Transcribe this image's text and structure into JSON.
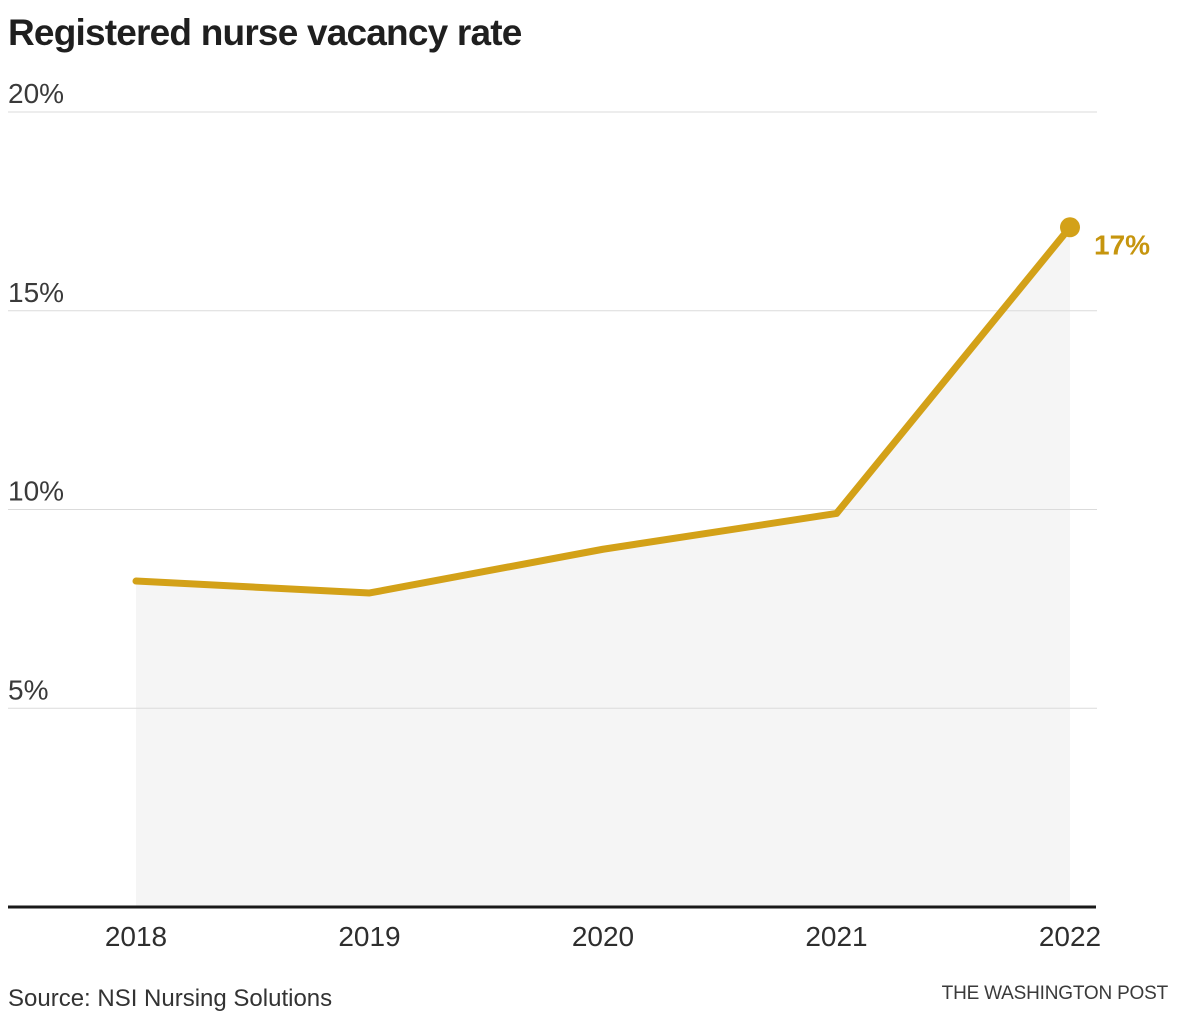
{
  "title": "Registered nurse vacancy rate",
  "source_note": "Source: NSI Nursing Solutions",
  "credit": "THE WASHINGTON POST",
  "colors": {
    "accent_gold": "#d3a118",
    "end_label_gold": "#c6950e",
    "area_fill": "#f5f5f5",
    "gridline": "#dbdbdb",
    "axis": "#1a1a1a"
  },
  "chart_data": {
    "type": "line",
    "title": "Registered nurse vacancy rate",
    "x": [
      "2018",
      "2019",
      "2020",
      "2021",
      "2022"
    ],
    "series": [
      {
        "name": "Registered nurse vacancy rate",
        "values": [
          8.2,
          7.9,
          9.0,
          9.9,
          17.1
        ]
      }
    ],
    "ylim": [
      0,
      20
    ],
    "yticks": [
      {
        "value": 20,
        "label": "20%"
      },
      {
        "value": 15,
        "label": "15%"
      },
      {
        "value": 10,
        "label": "10%"
      },
      {
        "value": 5,
        "label": "5%"
      }
    ],
    "grid": true,
    "area_under_line": true,
    "end_label": "17%",
    "legend": "none",
    "xlabel": "",
    "ylabel": ""
  }
}
